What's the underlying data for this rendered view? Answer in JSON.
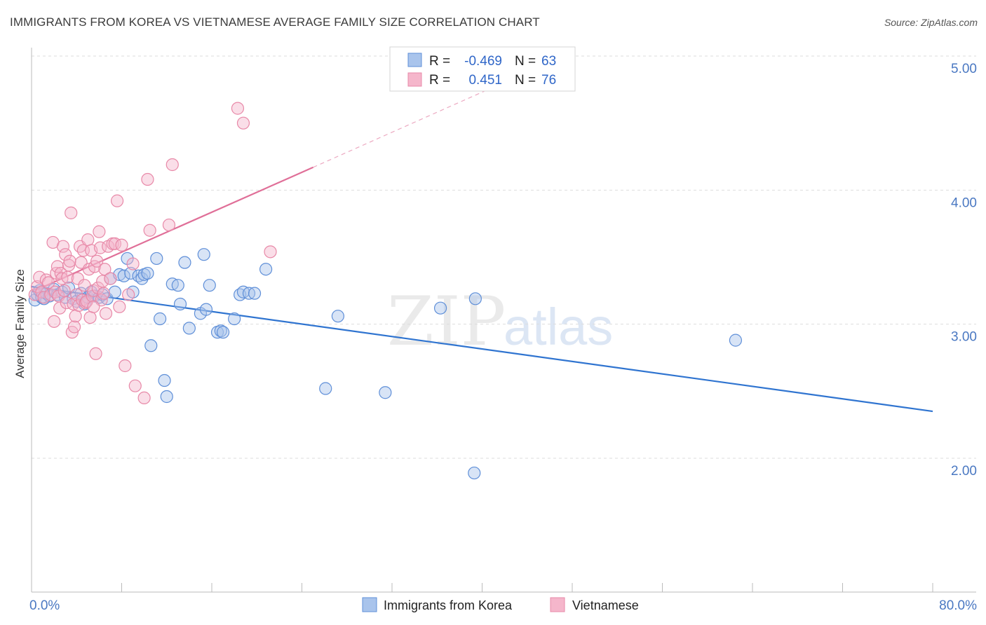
{
  "title": "IMMIGRANTS FROM KOREA VS VIETNAMESE AVERAGE FAMILY SIZE CORRELATION CHART",
  "source": "Source: ZipAtlas.com",
  "watermark": {
    "zip": "ZIP",
    "atlas": "atlas"
  },
  "colors": {
    "blue_fill": "#a9c4ec",
    "blue_stroke": "#5f8fd8",
    "blue_line": "#2f74d0",
    "pink_fill": "#f5b6cb",
    "pink_stroke": "#e889a8",
    "pink_line": "#e06f98",
    "axis_label": "#4a78c2",
    "grid": "#dddddd"
  },
  "legend": {
    "r_label": "R =",
    "n_label": "N =",
    "rows": [
      {
        "series": "blue",
        "r": "-0.469",
        "n": "63"
      },
      {
        "series": "pink",
        "r": "0.451",
        "n": "76"
      }
    ]
  },
  "chart_data": {
    "type": "scatter",
    "title": "IMMIGRANTS FROM KOREA VS VIETNAMESE AVERAGE FAMILY SIZE CORRELATION CHART",
    "xlabel": "",
    "ylabel": "Average Family Size",
    "xlim": [
      0,
      80
    ],
    "ylim": [
      1.0,
      5.1
    ],
    "x_tick_labels": [
      "0.0%",
      "80.0%"
    ],
    "y_ticks": [
      2.0,
      3.0,
      4.0,
      5.0
    ],
    "y_tick_labels": [
      "2.00",
      "3.00",
      "4.00",
      "5.00"
    ],
    "grid": true,
    "legend_position": "bottom",
    "series": [
      {
        "name": "Immigrants from Korea",
        "color": "blue",
        "trend": {
          "x": [
            0,
            80
          ],
          "y": [
            3.28,
            2.35
          ],
          "dashed_to": null
        },
        "points": [
          [
            0.3,
            3.18
          ],
          [
            0.5,
            3.22
          ],
          [
            0.7,
            3.25
          ],
          [
            0.9,
            3.2
          ],
          [
            1.1,
            3.19
          ],
          [
            1.3,
            3.23
          ],
          [
            1.6,
            3.21
          ],
          [
            2.0,
            3.26
          ],
          [
            2.3,
            3.22
          ],
          [
            2.7,
            3.24
          ],
          [
            3.0,
            3.2
          ],
          [
            3.3,
            3.27
          ],
          [
            3.7,
            3.19
          ],
          [
            4.0,
            3.17
          ],
          [
            4.4,
            3.23
          ],
          [
            4.7,
            3.15
          ],
          [
            5.0,
            3.2
          ],
          [
            5.3,
            3.24
          ],
          [
            5.6,
            3.21
          ],
          [
            6.0,
            3.2
          ],
          [
            6.3,
            3.22
          ],
          [
            6.7,
            3.19
          ],
          [
            7.0,
            3.34
          ],
          [
            7.4,
            3.24
          ],
          [
            7.8,
            3.37
          ],
          [
            8.2,
            3.36
          ],
          [
            8.5,
            3.49
          ],
          [
            8.8,
            3.38
          ],
          [
            9.0,
            3.24
          ],
          [
            9.5,
            3.36
          ],
          [
            9.8,
            3.34
          ],
          [
            10.0,
            3.37
          ],
          [
            10.3,
            3.38
          ],
          [
            10.6,
            2.84
          ],
          [
            11.1,
            3.49
          ],
          [
            11.4,
            3.04
          ],
          [
            11.8,
            2.58
          ],
          [
            12.0,
            2.46
          ],
          [
            12.5,
            3.3
          ],
          [
            13.0,
            3.29
          ],
          [
            13.2,
            3.15
          ],
          [
            13.6,
            3.46
          ],
          [
            14.0,
            2.97
          ],
          [
            15.0,
            3.08
          ],
          [
            15.3,
            3.52
          ],
          [
            15.5,
            3.11
          ],
          [
            15.8,
            3.29
          ],
          [
            16.5,
            2.94
          ],
          [
            16.8,
            2.95
          ],
          [
            17.0,
            2.94
          ],
          [
            18.0,
            3.04
          ],
          [
            18.5,
            3.22
          ],
          [
            18.8,
            3.24
          ],
          [
            19.3,
            3.23
          ],
          [
            19.8,
            3.23
          ],
          [
            20.8,
            3.41
          ],
          [
            26.1,
            2.52
          ],
          [
            27.2,
            3.06
          ],
          [
            31.4,
            2.49
          ],
          [
            36.3,
            3.12
          ],
          [
            39.3,
            1.89
          ],
          [
            39.4,
            3.19
          ],
          [
            62.5,
            2.88
          ]
        ]
      },
      {
        "name": "Vietnamese",
        "color": "pink",
        "trend": {
          "x": [
            0,
            25
          ],
          "y": [
            3.24,
            4.17
          ],
          "dashed_to": [
            44,
            4.88
          ]
        },
        "points": [
          [
            0.3,
            3.22
          ],
          [
            0.5,
            3.28
          ],
          [
            0.7,
            3.35
          ],
          [
            0.9,
            3.24
          ],
          [
            1.1,
            3.2
          ],
          [
            1.3,
            3.33
          ],
          [
            1.5,
            3.31
          ],
          [
            1.7,
            3.22
          ],
          [
            1.9,
            3.61
          ],
          [
            2.0,
            3.02
          ],
          [
            2.1,
            3.24
          ],
          [
            2.2,
            3.38
          ],
          [
            2.3,
            3.43
          ],
          [
            2.4,
            3.21
          ],
          [
            2.5,
            3.12
          ],
          [
            2.6,
            3.38
          ],
          [
            2.7,
            3.34
          ],
          [
            2.8,
            3.58
          ],
          [
            2.9,
            3.25
          ],
          [
            3.0,
            3.52
          ],
          [
            3.1,
            3.16
          ],
          [
            3.2,
            3.35
          ],
          [
            3.3,
            3.44
          ],
          [
            3.4,
            3.47
          ],
          [
            3.5,
            3.83
          ],
          [
            3.6,
            2.94
          ],
          [
            3.7,
            3.15
          ],
          [
            3.8,
            2.98
          ],
          [
            3.9,
            3.06
          ],
          [
            4.0,
            3.22
          ],
          [
            4.1,
            3.34
          ],
          [
            4.2,
            3.14
          ],
          [
            4.3,
            3.58
          ],
          [
            4.4,
            3.46
          ],
          [
            4.5,
            3.18
          ],
          [
            4.6,
            3.55
          ],
          [
            4.7,
            3.29
          ],
          [
            4.8,
            3.16
          ],
          [
            4.9,
            3.17
          ],
          [
            5.0,
            3.63
          ],
          [
            5.1,
            3.41
          ],
          [
            5.2,
            3.05
          ],
          [
            5.3,
            3.55
          ],
          [
            5.4,
            3.21
          ],
          [
            5.5,
            3.25
          ],
          [
            5.6,
            3.43
          ],
          [
            5.7,
            2.78
          ],
          [
            5.8,
            3.47
          ],
          [
            5.9,
            3.27
          ],
          [
            6.0,
            3.69
          ],
          [
            6.1,
            3.57
          ],
          [
            6.2,
            3.18
          ],
          [
            6.3,
            3.32
          ],
          [
            6.4,
            3.23
          ],
          [
            6.5,
            3.41
          ],
          [
            6.6,
            3.08
          ],
          [
            6.8,
            3.58
          ],
          [
            7.0,
            3.34
          ],
          [
            7.2,
            3.6
          ],
          [
            7.4,
            3.6
          ],
          [
            7.6,
            3.92
          ],
          [
            7.8,
            3.13
          ],
          [
            8.0,
            3.59
          ],
          [
            8.3,
            2.69
          ],
          [
            9.2,
            2.54
          ],
          [
            10.0,
            2.45
          ],
          [
            10.3,
            4.08
          ],
          [
            10.5,
            3.7
          ],
          [
            12.2,
            3.74
          ],
          [
            12.5,
            4.19
          ],
          [
            18.3,
            4.61
          ],
          [
            18.8,
            4.5
          ],
          [
            21.2,
            3.54
          ],
          [
            9.0,
            3.45
          ],
          [
            8.6,
            3.22
          ],
          [
            5.5,
            3.13
          ]
        ]
      }
    ]
  }
}
